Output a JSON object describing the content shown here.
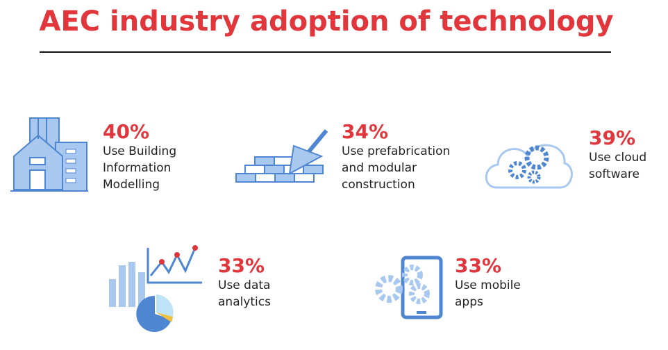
{
  "header": {
    "title": "AEC industry adoption of technology"
  },
  "items": [
    {
      "stat": "40%",
      "label": [
        "Use Building",
        "Information",
        "Modelling"
      ]
    },
    {
      "stat": "34%",
      "label": [
        "Use prefabrication",
        "and modular",
        "construction"
      ]
    },
    {
      "stat": "39%",
      "label": [
        "Use cloud",
        "software"
      ]
    },
    {
      "stat": "33%",
      "label": [
        "Use data",
        "analytics"
      ]
    },
    {
      "stat": "33%",
      "label": [
        "Use mobile",
        "apps"
      ]
    }
  ]
}
